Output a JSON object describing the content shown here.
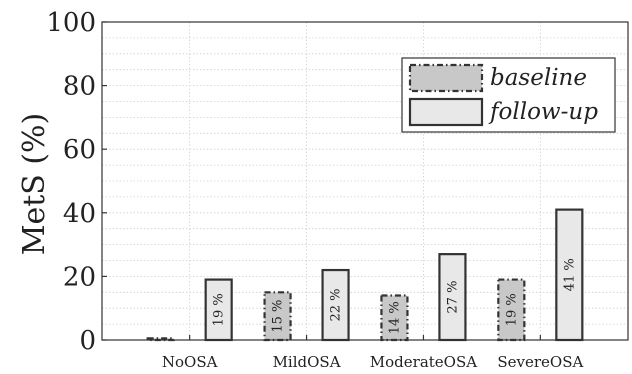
{
  "chart_data": {
    "type": "bar",
    "categories": [
      "NoOSA",
      "MildOSA",
      "ModerateOSA",
      "SevereOSA"
    ],
    "series": [
      {
        "name": "baseline",
        "values": [
          0.5,
          15,
          14,
          19
        ],
        "labels": [
          "",
          "15 %",
          "14 %",
          "19 %"
        ],
        "fill": "#c8c8c8",
        "stroke": "dash-dot"
      },
      {
        "name": "follow-up",
        "values": [
          19,
          22,
          27,
          41
        ],
        "labels": [
          "19 %",
          "22 %",
          "27 %",
          "41 %"
        ],
        "fill": "#e8e8e8",
        "stroke": "solid"
      }
    ],
    "ylabel": "MetS (%)",
    "xlabel": "",
    "ylim": [
      0,
      100
    ],
    "yticks": [
      0,
      20,
      40,
      60,
      80,
      100
    ],
    "grid": true,
    "legend_position": "top-right"
  }
}
